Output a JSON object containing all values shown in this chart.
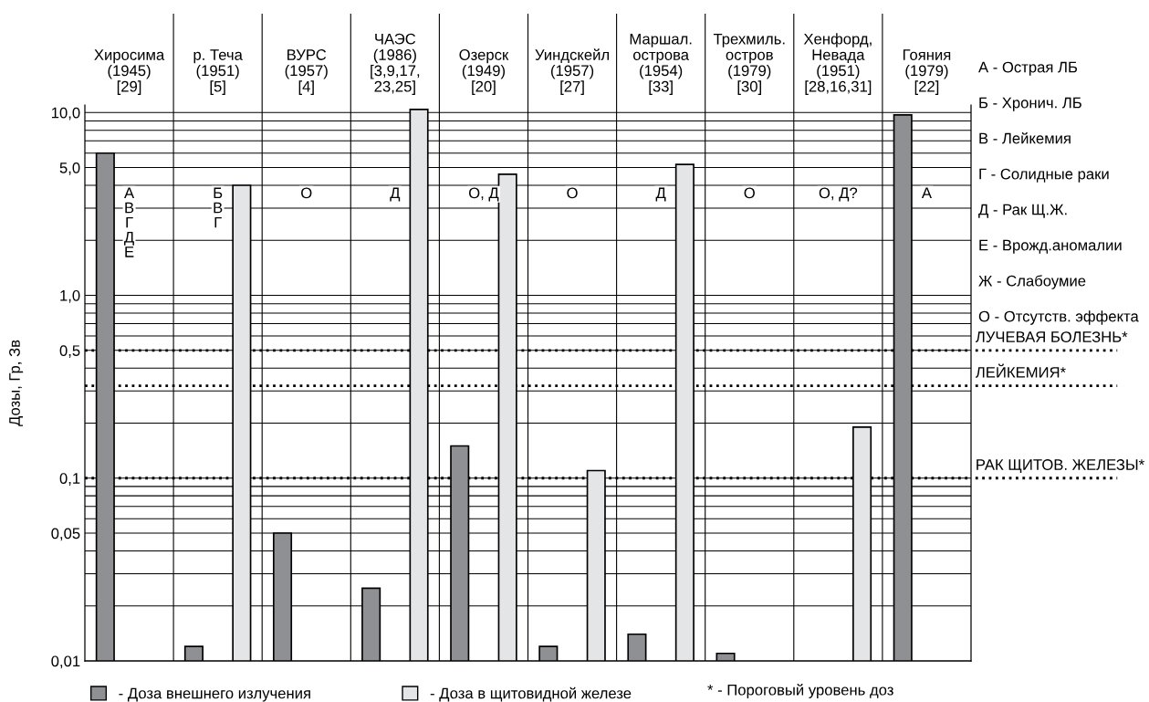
{
  "chart_data": {
    "type": "bar",
    "ylabel": "Дозы, Гр, Зв",
    "categories": [
      "Хиросима\n(1945)\n[29]",
      "р. Теча\n(1951)\n[5]",
      "ВУРС\n(1957)\n[4]",
      "ЧАЭС\n(1986)\n[3,9,17,\n23,25]",
      "Озерск\n(1949)\n[20]",
      "Уиндскейл\n(1957)\n[27]",
      "Маршал.\nострова\n(1954)\n[33]",
      "Трехмиль.\nостров\n(1979)\n[30]",
      "Хенфорд,\nНевада\n(1951)\n[28,16,31]",
      "Гояния\n(1979)\n[22]"
    ],
    "series": [
      {
        "name": "- Доза внешнего излучения",
        "color": "#8f9094",
        "values": [
          6.0,
          0.012,
          0.05,
          0.025,
          0.15,
          0.012,
          0.014,
          0.011,
          null,
          9.7
        ]
      },
      {
        "name": "- Доза в щитовидной железе",
        "color": "#e4e5e7",
        "values": [
          null,
          4.0,
          null,
          10.4,
          4.6,
          0.11,
          5.2,
          null,
          0.19,
          null
        ]
      }
    ],
    "log": "y",
    "ylim": [
      0.01,
      11
    ],
    "yticks": [
      {
        "value": 0.01,
        "label": "0,01"
      },
      {
        "value": 0.05,
        "label": "0,05"
      },
      {
        "value": 0.1,
        "label": "0,1"
      },
      {
        "value": 0.5,
        "label": "0,5"
      },
      {
        "value": 1,
        "label": "1,0"
      },
      {
        "value": 5,
        "label": "5,0"
      },
      {
        "value": 10,
        "label": "10,0"
      }
    ],
    "grid": "y",
    "legend": "bottom",
    "ref_lines": [
      {
        "axis": "y",
        "value": 0.5,
        "label": "ЛУЧЕВАЯ БОЛЕЗНЬ*",
        "color": "#000000",
        "line_style": "dotted"
      },
      {
        "axis": "y",
        "value": 0.32,
        "label": "ЛЕЙКЕМИЯ*",
        "color": "#000000",
        "line_style": "dotted"
      },
      {
        "axis": "y",
        "value": 0.1,
        "label": "РАК ЩИТОВ. ЖЕЛЕЗЫ*",
        "color": "#000000",
        "line_style": "dotted"
      }
    ],
    "annotations": [
      "А - Острая ЛБ",
      "Б - Хронич. ЛБ",
      "В - Лейкемия",
      "Г - Солидные раки",
      "Д - Рак Щ.Ж.",
      "Е - Врожд.аномалии",
      "Ж - Слабоумие",
      "О - Отсутств. эффекта",
      "* - Пороговый уровень доз",
      "А\nВ\nГ\nД\nЕ",
      "Б\nВ\nГ",
      "О",
      "Д",
      "О, Д",
      "О",
      "Д",
      "О",
      "О, Д?",
      "А"
    ]
  }
}
